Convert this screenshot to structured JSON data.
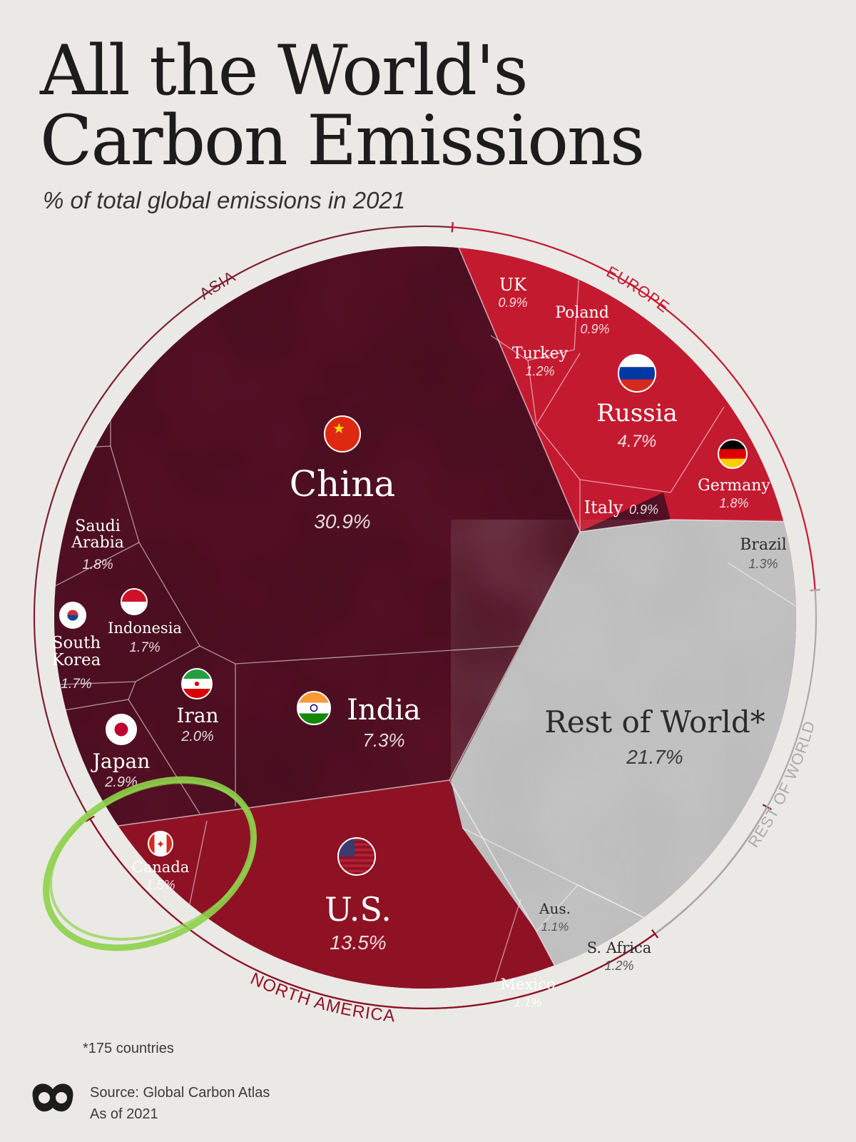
{
  "title": "All the World's\nCarbon Emissions",
  "subtitle": "% of total global emissions in 2021",
  "footnote": "*175 countries",
  "source": "Source: Global Carbon Atlas",
  "as_of": "As of 2021",
  "colors": {
    "asia": "#5a1128",
    "europe": "#c41a30",
    "north_america": "#8e1224",
    "rest_of_world": "#b9b9b9",
    "ring_asia": "#7a2035",
    "ring_europe": "#c41a30",
    "ring_north_america": "#8e1224",
    "ring_rest": "#aaaaaa",
    "highlight_circle": "#8ed14a"
  },
  "chart_data": {
    "type": "treemap",
    "unit": "% of total global emissions in 2021",
    "regions": [
      {
        "name": "ASIA",
        "countries": [
          {
            "name": "China",
            "value": 30.9,
            "value_label": "30.9%",
            "flag": "china-flag"
          },
          {
            "name": "India",
            "value": 7.3,
            "value_label": "7.3%",
            "flag": "india-flag"
          },
          {
            "name": "Japan",
            "value": 2.9,
            "value_label": "2.9%",
            "flag": "japan-flag"
          },
          {
            "name": "Iran",
            "value": 2.0,
            "value_label": "2.0%",
            "flag": "iran-flag"
          },
          {
            "name": "Saudi Arabia",
            "value": 1.8,
            "value_label": "1.8%"
          },
          {
            "name": "Indonesia",
            "value": 1.7,
            "value_label": "1.7%",
            "flag": "indonesia-flag"
          },
          {
            "name": "South Korea",
            "value": 1.7,
            "value_label": "1.7%",
            "flag": "south-korea-flag"
          }
        ]
      },
      {
        "name": "EUROPE",
        "countries": [
          {
            "name": "Russia",
            "value": 4.7,
            "value_label": "4.7%",
            "flag": "russia-flag"
          },
          {
            "name": "Germany",
            "value": 1.8,
            "value_label": "1.8%",
            "flag": "germany-flag"
          },
          {
            "name": "Turkey",
            "value": 1.2,
            "value_label": "1.2%"
          },
          {
            "name": "UK",
            "value": 0.9,
            "value_label": "0.9%"
          },
          {
            "name": "Poland",
            "value": 0.9,
            "value_label": "0.9%"
          },
          {
            "name": "Italy",
            "value": 0.9,
            "value_label": "0.9%"
          }
        ]
      },
      {
        "name": "NORTH AMERICA",
        "countries": [
          {
            "name": "U.S.",
            "value": 13.5,
            "value_label": "13.5%",
            "flag": "us-flag"
          },
          {
            "name": "Canada",
            "value": 1.5,
            "value_label": "1.5%",
            "flag": "canada-flag"
          },
          {
            "name": "Mexico",
            "value": 1.1,
            "value_label": "1.1%"
          }
        ]
      },
      {
        "name": "REST OF WORLD",
        "countries": [
          {
            "name": "Rest of World*",
            "value": 21.7,
            "value_label": "21.7%"
          },
          {
            "name": "Brazil",
            "value": 1.3,
            "value_label": "1.3%"
          },
          {
            "name": "S. Africa",
            "value": 1.2,
            "value_label": "1.2%"
          },
          {
            "name": "Aus.",
            "value": 1.1,
            "value_label": "1.1%"
          }
        ]
      }
    ]
  }
}
